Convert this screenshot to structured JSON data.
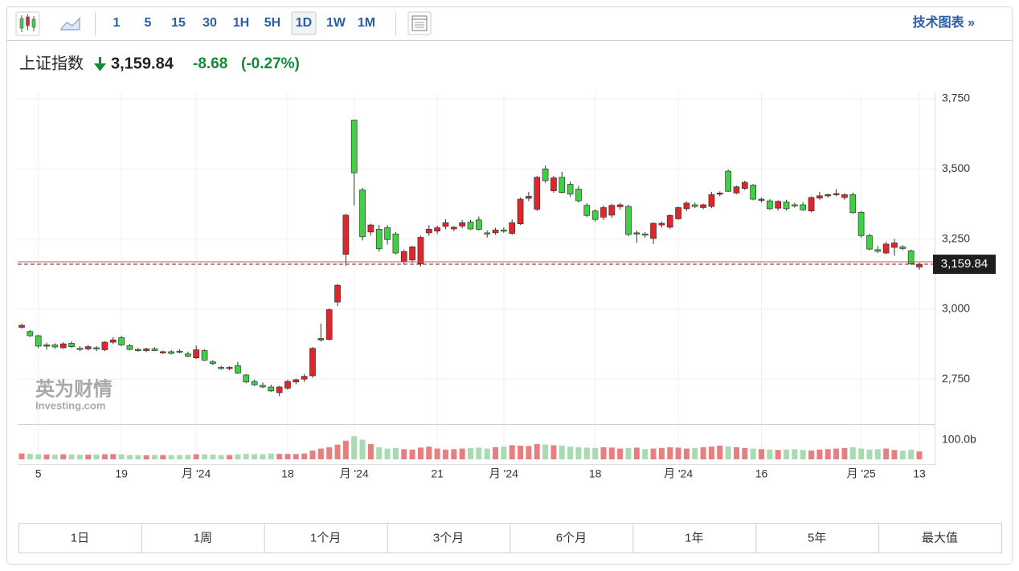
{
  "toolbar": {
    "intervals": [
      "1",
      "5",
      "15",
      "30",
      "1H",
      "5H",
      "1D",
      "1W",
      "1M"
    ],
    "selected": 6,
    "link": "技术图表 »"
  },
  "header": {
    "name": "上证指数",
    "price": "3,159.84",
    "change": "-8.68",
    "change_pct": "(-0.27%)"
  },
  "watermark": {
    "brand": "英为财情",
    "site": "Investing.com"
  },
  "chart_data": {
    "type": "candlestick",
    "categories": [
      null,
      null,
      "5",
      null,
      null,
      null,
      null,
      null,
      null,
      null,
      null,
      null,
      "19",
      null,
      null,
      null,
      null,
      null,
      null,
      null,
      null,
      "月 '24",
      null,
      null,
      null,
      null,
      null,
      null,
      null,
      null,
      null,
      null,
      "18",
      null,
      null,
      null,
      null,
      null,
      null,
      null,
      "月 '24",
      null,
      null,
      null,
      null,
      null,
      null,
      null,
      null,
      null,
      "21",
      null,
      null,
      null,
      null,
      null,
      null,
      null,
      "月 '24",
      null,
      null,
      null,
      null,
      null,
      null,
      null,
      null,
      null,
      null,
      "18",
      null,
      null,
      null,
      null,
      null,
      null,
      null,
      null,
      null,
      "月 '24",
      null,
      null,
      null,
      null,
      null,
      null,
      null,
      null,
      null,
      "16",
      null,
      null,
      null,
      null,
      null,
      null,
      null,
      null,
      null,
      null,
      null,
      "月 '25",
      null,
      null,
      null,
      null,
      null,
      null,
      "13"
    ],
    "open": [
      2935,
      2920,
      2905,
      2868,
      2872,
      2862,
      2878,
      2860,
      2858,
      2862,
      2855,
      2882,
      2898,
      2870,
      2856,
      2852,
      2858,
      2846,
      2848,
      2850,
      2840,
      2826,
      2852,
      2812,
      2792,
      2790,
      2798,
      2765,
      2742,
      2728,
      2722,
      2702,
      2718,
      2740,
      2750,
      2762,
      2890,
      2892,
      3025,
      3195,
      3674,
      3425,
      3275,
      3285,
      3290,
      3268,
      3170,
      3175,
      3162,
      3272,
      3278,
      3295,
      3286,
      3296,
      3310,
      3318,
      3272,
      3272,
      3282,
      3270,
      3304,
      3395,
      3356,
      3500,
      3422,
      3470,
      3445,
      3428,
      3370,
      3350,
      3328,
      3335,
      3365,
      3366,
      3268,
      3268,
      3252,
      3300,
      3292,
      3322,
      3358,
      3372,
      3362,
      3366,
      3410,
      3492,
      3414,
      3430,
      3442,
      3390,
      3386,
      3360,
      3382,
      3372,
      3372,
      3350,
      3396,
      3404,
      3408,
      3398,
      3408,
      3345,
      3262,
      3212,
      3200,
      3220,
      3222,
      3208,
      3150
    ],
    "high": [
      2948,
      2925,
      2908,
      2880,
      2878,
      2882,
      2885,
      2868,
      2872,
      2868,
      2885,
      2900,
      2905,
      2875,
      2862,
      2862,
      2864,
      2852,
      2854,
      2856,
      2848,
      2870,
      2856,
      2818,
      2798,
      2796,
      2812,
      2768,
      2748,
      2738,
      2730,
      2726,
      2748,
      2752,
      2768,
      2865,
      2948,
      3002,
      3090,
      3340,
      3675,
      3432,
      3305,
      3300,
      3300,
      3275,
      3212,
      3225,
      3262,
      3300,
      3298,
      3320,
      3296,
      3318,
      3318,
      3330,
      3280,
      3290,
      3292,
      3320,
      3398,
      3418,
      3475,
      3512,
      3475,
      3490,
      3455,
      3440,
      3378,
      3356,
      3370,
      3375,
      3378,
      3372,
      3280,
      3275,
      3310,
      3312,
      3338,
      3366,
      3384,
      3380,
      3376,
      3418,
      3420,
      3498,
      3440,
      3458,
      3446,
      3398,
      3392,
      3388,
      3390,
      3380,
      3382,
      3402,
      3418,
      3412,
      3428,
      3412,
      3416,
      3350,
      3270,
      3225,
      3240,
      3250,
      3228,
      3212,
      3165
    ],
    "low": [
      2930,
      2900,
      2860,
      2855,
      2858,
      2858,
      2862,
      2850,
      2852,
      2850,
      2850,
      2875,
      2868,
      2852,
      2848,
      2846,
      2850,
      2840,
      2838,
      2842,
      2828,
      2822,
      2815,
      2800,
      2784,
      2782,
      2768,
      2735,
      2726,
      2718,
      2704,
      2690,
      2712,
      2732,
      2740,
      2755,
      2884,
      2888,
      3010,
      3155,
      3370,
      3245,
      3262,
      3205,
      3230,
      3195,
      3160,
      3165,
      3152,
      3262,
      3268,
      3285,
      3278,
      3288,
      3282,
      3280,
      3255,
      3265,
      3272,
      3265,
      3300,
      3385,
      3350,
      3450,
      3415,
      3412,
      3400,
      3380,
      3328,
      3312,
      3318,
      3325,
      3355,
      3260,
      3236,
      3255,
      3232,
      3290,
      3285,
      3318,
      3350,
      3360,
      3356,
      3360,
      3402,
      3418,
      3410,
      3425,
      3388,
      3380,
      3354,
      3352,
      3352,
      3362,
      3350,
      3345,
      3390,
      3398,
      3402,
      3390,
      3340,
      3255,
      3210,
      3200,
      3195,
      3190,
      3210,
      3158,
      3140
    ],
    "close": [
      2942,
      2905,
      2868,
      2872,
      2865,
      2876,
      2866,
      2858,
      2866,
      2858,
      2882,
      2890,
      2872,
      2856,
      2852,
      2858,
      2852,
      2848,
      2842,
      2846,
      2832,
      2855,
      2818,
      2806,
      2790,
      2792,
      2772,
      2740,
      2730,
      2722,
      2708,
      2722,
      2742,
      2748,
      2760,
      2860,
      2895,
      2998,
      3085,
      3335,
      3486,
      3258,
      3300,
      3215,
      3248,
      3200,
      3205,
      3222,
      3256,
      3285,
      3290,
      3308,
      3292,
      3308,
      3286,
      3284,
      3270,
      3282,
      3278,
      3308,
      3392,
      3402,
      3470,
      3458,
      3468,
      3416,
      3410,
      3386,
      3334,
      3320,
      3362,
      3370,
      3372,
      3266,
      3272,
      3266,
      3306,
      3306,
      3334,
      3362,
      3378,
      3366,
      3372,
      3408,
      3414,
      3420,
      3436,
      3452,
      3392,
      3392,
      3358,
      3384,
      3358,
      3370,
      3354,
      3398,
      3404,
      3408,
      3412,
      3408,
      3344,
      3262,
      3214,
      3206,
      3232,
      3236,
      3216,
      3162,
      3159.84
    ],
    "up_color": "#e0262b",
    "down_color": "#3fd044",
    "ylim": [
      2590,
      3773
    ],
    "yticks": [
      {
        "value": 2750,
        "label": "2,750"
      },
      {
        "value": 3000,
        "label": "3,000"
      },
      {
        "value": 3250,
        "label": "3,250"
      },
      {
        "value": 3500,
        "label": "3,500"
      },
      {
        "value": 3750,
        "label": "3,750"
      }
    ],
    "grid": true,
    "prev_close": 3168.52,
    "last_price": {
      "value": 3159.84,
      "label": "3,159.84"
    },
    "volume": {
      "values": [
        30,
        28,
        26,
        25,
        24,
        26,
        25,
        23,
        24,
        24,
        26,
        27,
        25,
        22,
        22,
        21,
        22,
        22,
        22,
        22,
        23,
        26,
        25,
        24,
        22,
        22,
        25,
        28,
        27,
        26,
        30,
        28,
        28,
        27,
        30,
        45,
        55,
        62,
        75,
        95,
        118,
        100,
        78,
        62,
        55,
        58,
        52,
        50,
        60,
        65,
        55,
        50,
        52,
        55,
        58,
        60,
        55,
        62,
        65,
        72,
        70,
        68,
        78,
        75,
        72,
        70,
        65,
        62,
        60,
        58,
        62,
        60,
        55,
        58,
        60,
        52,
        55,
        58,
        62,
        60,
        55,
        58,
        62,
        65,
        70,
        66,
        62,
        58,
        55,
        52,
        50,
        48,
        50,
        52,
        48,
        45,
        50,
        52,
        55,
        58,
        62,
        55,
        50,
        52,
        55,
        48,
        45,
        50,
        40
      ],
      "ylim": [
        0,
        180
      ],
      "yticks": [
        {
          "value": 100,
          "label": "100.0b"
        }
      ],
      "up_color": "#e57f80",
      "down_color": "#a9dbb3"
    }
  },
  "range_buttons": [
    "1日",
    "1周",
    "1个月",
    "3个月",
    "6个月",
    "1年",
    "5年",
    "最大值"
  ]
}
